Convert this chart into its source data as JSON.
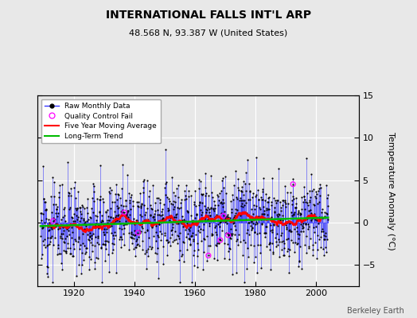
{
  "title": "INTERNATIONAL FALLS INT'L ARP",
  "subtitle": "48.568 N, 93.387 W (United States)",
  "ylabel": "Temperature Anomaly (°C)",
  "attribution": "Berkeley Earth",
  "xlim": [
    1908,
    2014
  ],
  "ylim": [
    -7.5,
    15
  ],
  "yticks": [
    -5,
    0,
    5,
    10,
    15
  ],
  "xticks": [
    1920,
    1940,
    1960,
    1980,
    2000
  ],
  "background_color": "#e8e8e8",
  "plot_bg_color": "#e8e8e8",
  "raw_line_color": "#3333ff",
  "raw_marker_color": "#000000",
  "qc_fail_color": "#ff00ff",
  "moving_avg_color": "#ff0000",
  "trend_color": "#00bb00",
  "seed": 12,
  "n_months": 1140,
  "start_year": 1909,
  "end_year": 2003
}
